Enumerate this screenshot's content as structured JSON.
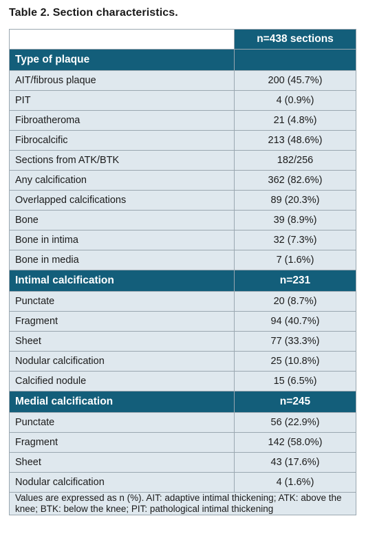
{
  "title": "Table 2. Section characteristics.",
  "header": {
    "n_label": "n=438 sections"
  },
  "sections": [
    {
      "heading": "Type of plaque",
      "heading_value": "",
      "rows": [
        {
          "label": "AIT/fibrous plaque",
          "value": "200 (45.7%)"
        },
        {
          "label": "PIT",
          "value": "4 (0.9%)"
        },
        {
          "label": "Fibroatheroma",
          "value": "21 (4.8%)"
        },
        {
          "label": "Fibrocalcific",
          "value": "213 (48.6%)"
        },
        {
          "label": "Sections from ATK/BTK",
          "value": "182/256"
        },
        {
          "label": "Any calcification",
          "value": "362 (82.6%)"
        },
        {
          "label": "Overlapped calcifications",
          "value": "89 (20.3%)"
        },
        {
          "label": "Bone",
          "value": "39 (8.9%)"
        },
        {
          "label": "Bone in intima",
          "value": "32 (7.3%)"
        },
        {
          "label": "Bone in media",
          "value": "7 (1.6%)"
        }
      ]
    },
    {
      "heading": "Intimal calcification",
      "heading_value": "n=231",
      "rows": [
        {
          "label": "Punctate",
          "value": "20 (8.7%)"
        },
        {
          "label": "Fragment",
          "value": "94 (40.7%)"
        },
        {
          "label": "Sheet",
          "value": "77 (33.3%)"
        },
        {
          "label": "Nodular calcification",
          "value": "25 (10.8%)"
        },
        {
          "label": "Calcified nodule",
          "value": "15 (6.5%)"
        }
      ]
    },
    {
      "heading": "Medial calcification",
      "heading_value": "n=245",
      "rows": [
        {
          "label": "Punctate",
          "value": "56 (22.9%)"
        },
        {
          "label": "Fragment",
          "value": "142 (58.0%)"
        },
        {
          "label": "Sheet",
          "value": "43 (17.6%)"
        },
        {
          "label": "Nodular calcification",
          "value": "4 (1.6%)"
        }
      ]
    }
  ],
  "footnote": "Values are expressed as n (%). AIT: adaptive intimal thickening; ATK: above the knee; BTK: below the knee; PIT: pathological intimal thickening",
  "colors": {
    "header_bg": "#135e7a",
    "row_bg": "#dfe8ee",
    "border": "#9aa7b0"
  }
}
